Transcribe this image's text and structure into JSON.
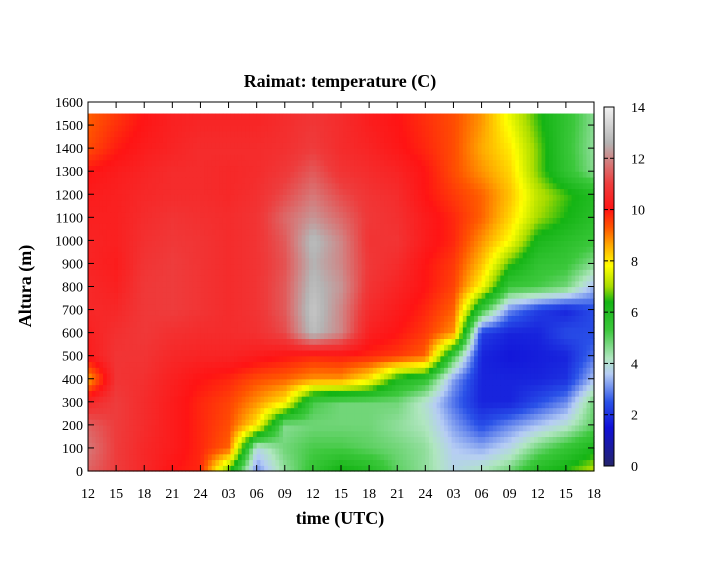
{
  "chart_data": {
    "type": "heatmap",
    "title": "Raimat: temperature (C)",
    "xlabel": "time (UTC)",
    "ylabel": "Altura (m)",
    "x_tick_labels": [
      "12",
      "15",
      "18",
      "21",
      "24",
      "03",
      "06",
      "09",
      "12",
      "15",
      "18",
      "21",
      "24",
      "03",
      "06",
      "09",
      "12",
      "15",
      "18"
    ],
    "x_range_hours": [
      0,
      54
    ],
    "y_ticks": [
      0,
      100,
      200,
      300,
      400,
      500,
      600,
      700,
      800,
      900,
      1000,
      1100,
      1200,
      1300,
      1400,
      1500,
      1600
    ],
    "ylim": [
      0,
      1600
    ],
    "data_top_altitude": 1550,
    "colorbar": {
      "ticks": [
        0,
        2,
        4,
        6,
        8,
        10,
        12,
        14
      ],
      "range": [
        0,
        14
      ],
      "stops": [
        {
          "value": 0,
          "color": "#24246b"
        },
        {
          "value": 1.5,
          "color": "#1010d8"
        },
        {
          "value": 2.5,
          "color": "#2a52e8"
        },
        {
          "value": 3.6,
          "color": "#b6cdf4"
        },
        {
          "value": 4.2,
          "color": "#b0e6c0"
        },
        {
          "value": 5.3,
          "color": "#3cc83c"
        },
        {
          "value": 6.4,
          "color": "#14b414"
        },
        {
          "value": 7.0,
          "color": "#a8dc00"
        },
        {
          "value": 7.8,
          "color": "#ffff00"
        },
        {
          "value": 8.6,
          "color": "#ffaa00"
        },
        {
          "value": 9.3,
          "color": "#ff5500"
        },
        {
          "value": 10.0,
          "color": "#ff1414"
        },
        {
          "value": 11.0,
          "color": "#ee3c3c"
        },
        {
          "value": 11.8,
          "color": "#d67878"
        },
        {
          "value": 12.6,
          "color": "#b4b4b4"
        },
        {
          "value": 14.0,
          "color": "#f2f2f2"
        }
      ]
    },
    "temperature_field": {
      "x_hours": [
        0,
        3,
        6,
        9,
        12,
        15,
        18,
        21,
        24,
        27,
        30,
        33,
        36,
        39,
        42,
        45,
        48,
        51,
        54
      ],
      "altitudes": [
        0,
        100,
        200,
        300,
        400,
        500,
        600,
        700,
        800,
        900,
        1000,
        1100,
        1200,
        1300,
        1400,
        1550
      ],
      "values_by_altitude": [
        [
          11.5,
          11.0,
          10.5,
          10.0,
          9.8,
          6.5,
          3.0,
          4.5,
          5.5,
          6.5,
          6.0,
          5.0,
          4.5,
          3.8,
          4.2,
          4.8,
          6.0,
          6.5,
          7.2
        ],
        [
          11.8,
          11.0,
          10.5,
          10.2,
          9.8,
          9.2,
          3.8,
          4.8,
          5.2,
          5.2,
          5.0,
          4.8,
          4.5,
          3.6,
          3.3,
          3.8,
          4.8,
          5.5,
          6.2
        ],
        [
          11.5,
          11.0,
          10.6,
          10.2,
          9.8,
          9.4,
          8.0,
          4.6,
          4.8,
          4.8,
          4.8,
          4.5,
          4.2,
          3.2,
          2.4,
          3.0,
          3.5,
          4.0,
          5.0
        ],
        [
          10.5,
          11.0,
          10.6,
          10.2,
          9.8,
          9.5,
          8.8,
          8.0,
          5.2,
          4.8,
          4.8,
          4.8,
          4.0,
          2.8,
          1.8,
          1.8,
          2.4,
          3.0,
          4.8
        ],
        [
          8.6,
          10.8,
          10.7,
          10.3,
          10.0,
          9.8,
          9.4,
          9.2,
          8.8,
          8.8,
          8.0,
          6.2,
          5.6,
          3.2,
          1.8,
          1.8,
          1.8,
          2.0,
          3.5
        ],
        [
          10.2,
          10.8,
          10.8,
          10.5,
          10.4,
          10.4,
          10.2,
          10.0,
          9.8,
          9.9,
          9.8,
          9.6,
          9.2,
          5.2,
          1.8,
          1.6,
          1.7,
          1.8,
          2.8
        ],
        [
          10.3,
          10.7,
          10.9,
          10.7,
          10.6,
          10.6,
          10.7,
          11.2,
          12.8,
          12.0,
          10.3,
          10.0,
          9.6,
          8.8,
          2.2,
          1.8,
          1.8,
          2.4,
          2.4
        ],
        [
          10.5,
          10.5,
          10.9,
          11.0,
          10.8,
          10.6,
          10.8,
          11.4,
          13.0,
          12.0,
          10.6,
          10.2,
          9.8,
          9.2,
          5.4,
          3.0,
          2.2,
          1.8,
          2.4
        ],
        [
          10.5,
          10.3,
          10.9,
          11.0,
          10.8,
          10.6,
          10.8,
          11.4,
          12.8,
          12.2,
          10.8,
          10.4,
          10.0,
          9.5,
          7.8,
          5.4,
          5.2,
          4.8,
          3.4
        ],
        [
          10.4,
          10.2,
          10.8,
          11.0,
          10.8,
          10.6,
          10.8,
          11.3,
          12.6,
          12.0,
          10.9,
          10.6,
          10.0,
          9.6,
          8.4,
          6.6,
          5.6,
          5.4,
          4.6
        ],
        [
          10.4,
          10.3,
          10.7,
          10.9,
          10.8,
          10.6,
          10.8,
          11.4,
          12.8,
          12.0,
          10.8,
          10.8,
          10.2,
          9.8,
          8.8,
          7.8,
          6.2,
          5.8,
          5.4
        ],
        [
          10.3,
          10.3,
          10.6,
          10.8,
          10.7,
          10.6,
          10.8,
          11.6,
          12.2,
          11.6,
          10.9,
          10.7,
          10.2,
          9.8,
          9.2,
          8.2,
          7.0,
          6.4,
          5.8
        ],
        [
          10.2,
          10.3,
          10.5,
          10.6,
          10.6,
          10.5,
          10.7,
          11.2,
          11.8,
          11.2,
          10.8,
          10.6,
          10.0,
          9.6,
          9.2,
          8.4,
          7.2,
          6.6,
          6.0
        ],
        [
          10.0,
          10.2,
          10.4,
          10.6,
          10.6,
          10.5,
          10.6,
          10.9,
          11.4,
          10.8,
          10.6,
          10.4,
          10.0,
          9.4,
          8.8,
          8.2,
          6.8,
          5.6,
          4.6
        ],
        [
          9.4,
          9.9,
          10.2,
          10.4,
          10.6,
          10.6,
          10.6,
          10.7,
          11.0,
          10.6,
          10.4,
          10.1,
          9.8,
          9.4,
          8.6,
          8.0,
          6.8,
          5.5,
          4.5
        ],
        [
          9.2,
          9.6,
          10.0,
          10.3,
          10.4,
          10.4,
          10.4,
          10.6,
          10.8,
          10.6,
          10.2,
          10.0,
          9.7,
          9.4,
          8.8,
          7.6,
          6.5,
          5.6,
          4.6
        ]
      ]
    }
  }
}
